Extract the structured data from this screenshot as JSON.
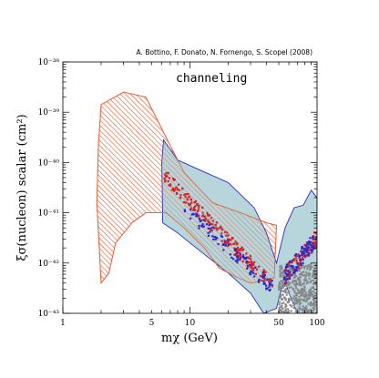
{
  "chart_data": {
    "type": "scatter",
    "credit": "A. Bottino, F. Donato, N. Fornengo, S. Scopel (2008)",
    "annotation": "channeling",
    "xlabel": "mχ (GeV)",
    "ylabel": "ξσ(nucleon) scalar (cm²)",
    "xscale": "log",
    "yscale": "log",
    "xlim": [
      1,
      100
    ],
    "ylim": [
      1e-43,
      1e-38
    ],
    "x_ticks": [
      {
        "value": 1,
        "label": "1"
      },
      {
        "value": 5,
        "label": "5"
      },
      {
        "value": 10,
        "label": "10"
      },
      {
        "value": 50,
        "label": "50"
      },
      {
        "value": 100,
        "label": "100"
      }
    ],
    "y_ticks": [
      {
        "value": 1e-38,
        "label": "10⁻³⁸"
      },
      {
        "value": 1e-39,
        "label": "10⁻³⁹"
      },
      {
        "value": 1e-40,
        "label": "10⁻⁴⁰"
      },
      {
        "value": 1e-41,
        "label": "10⁻⁴¹"
      },
      {
        "value": 1e-42,
        "label": "10⁻⁴²"
      },
      {
        "value": 1e-43,
        "label": "10⁻⁴³"
      }
    ],
    "regions": [
      {
        "style": "orange-hatched",
        "color": "#e8643c",
        "points": [
          [
            2.0,
            -38.85
          ],
          [
            3.0,
            -38.6
          ],
          [
            4.5,
            -38.7
          ],
          [
            6.2,
            -39.4
          ],
          [
            9,
            -40.2
          ],
          [
            15,
            -40.8
          ],
          [
            25,
            -41.0
          ],
          [
            40,
            -41.2
          ],
          [
            48,
            -41.25
          ],
          [
            46,
            -42.3
          ],
          [
            30,
            -42.4
          ],
          [
            22,
            -42.25
          ],
          [
            17,
            -42.1
          ],
          [
            13,
            -41.7
          ],
          [
            9,
            -41.3
          ],
          [
            6.5,
            -41.0
          ],
          [
            4.5,
            -41.0
          ],
          [
            3.5,
            -41.2
          ],
          [
            2.6,
            -41.6
          ],
          [
            2.3,
            -42.2
          ],
          [
            2.0,
            -42.4
          ],
          [
            1.85,
            -40.8
          ],
          [
            1.9,
            -39.7
          ]
        ]
      },
      {
        "style": "cyan-filled",
        "color": "#a9cfd5",
        "edge": "#2b2bbd",
        "points": [
          [
            6.0,
            -40.0
          ],
          [
            6.2,
            -39.55
          ],
          [
            8,
            -39.95
          ],
          [
            12,
            -40.15
          ],
          [
            20,
            -40.4
          ],
          [
            32,
            -40.9
          ],
          [
            40,
            -41.4
          ],
          [
            48,
            -42.0
          ],
          [
            56,
            -41.3
          ],
          [
            66,
            -40.9
          ],
          [
            78,
            -40.85
          ],
          [
            90,
            -40.55
          ],
          [
            100,
            -40.7
          ],
          [
            100,
            -43
          ],
          [
            70,
            -43
          ],
          [
            60,
            -42.6
          ],
          [
            55,
            -42.3
          ],
          [
            48,
            -42.9
          ],
          [
            38,
            -43.0
          ],
          [
            30,
            -42.6
          ],
          [
            20,
            -42.2
          ],
          [
            10,
            -41.6
          ],
          [
            8,
            -41.4
          ],
          [
            6.1,
            -41.2
          ]
        ]
      }
    ],
    "scatter_series": [
      {
        "color": "#dd2222",
        "x_range": [
          6.2,
          45
        ],
        "y_start": -40.25,
        "y_end": -42.45,
        "count": 220
      },
      {
        "color": "#2a2ad0",
        "x_range": [
          9,
          45
        ],
        "y_start": -40.9,
        "y_end": -42.5,
        "count": 110
      },
      {
        "color": "#888888",
        "x_range": [
          50,
          100
        ],
        "y_min": -43.0,
        "y_max": -42.0,
        "count": 420
      },
      {
        "color": "#dd2222",
        "x_range": [
          55,
          100
        ],
        "y_min": -42.3,
        "y_max": -41.5,
        "count": 120
      },
      {
        "color": "#2a2ad0",
        "x_range": [
          55,
          100
        ],
        "y_min": -42.2,
        "y_max": -41.4,
        "count": 90
      }
    ],
    "grid": false,
    "legend": "none"
  }
}
